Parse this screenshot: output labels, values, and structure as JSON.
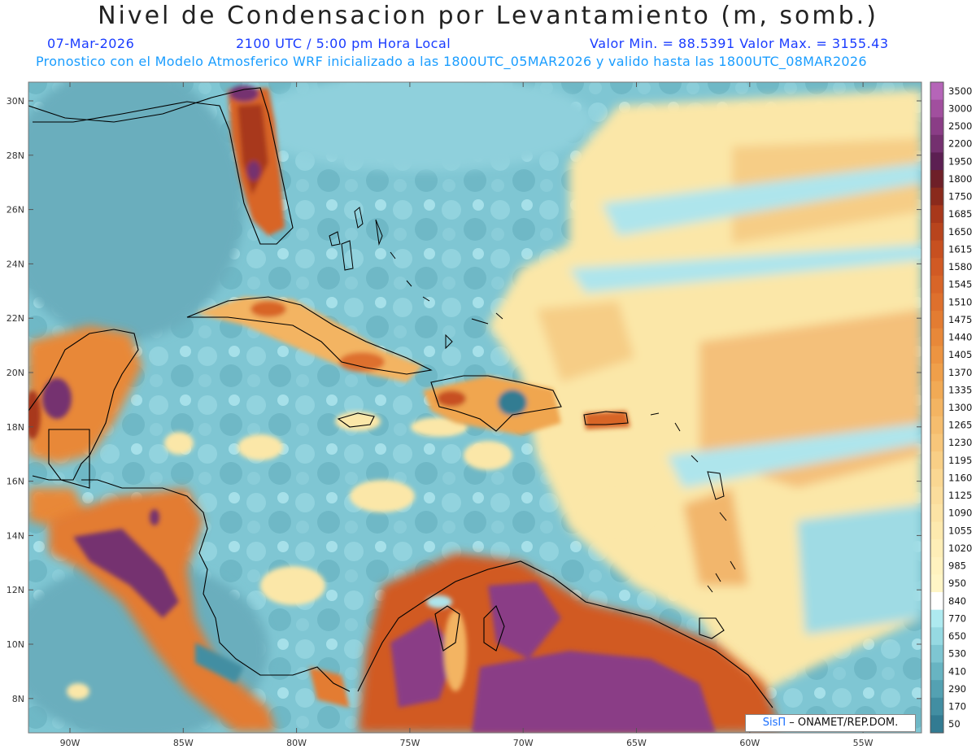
{
  "title": "Nivel de Condensacion por Levantamiento (m, somb.)",
  "subtitle": {
    "date": "07-Mar-2026",
    "time": "2100 UTC / 5:00 pm Hora Local",
    "minmax": "Valor Min. = 88.5391   Valor Max. = 3155.43"
  },
  "forecast_note": "Pronostico con el Modelo Atmosferico WRF inicializado a las 1800UTC_05MAR2026 y valido hasta las  1800UTC_08MAR2026",
  "lat_labels": [
    "30N",
    "28N",
    "26N",
    "24N",
    "22N",
    "20N",
    "18N",
    "16N",
    "14N",
    "12N",
    "10N",
    "8N"
  ],
  "lon_labels": [
    "90W",
    "85W",
    "80W",
    "75W",
    "70W",
    "65W",
    "60W",
    "55W"
  ],
  "colorbar": [
    {
      "label": "3500",
      "color": "#b565b8"
    },
    {
      "label": "3000",
      "color": "#a14f9e"
    },
    {
      "label": "2500",
      "color": "#8a3d86"
    },
    {
      "label": "2200",
      "color": "#74306f"
    },
    {
      "label": "1950",
      "color": "#5c1f52"
    },
    {
      "label": "1800",
      "color": "#6e1f28"
    },
    {
      "label": "1750",
      "color": "#8a2a1c"
    },
    {
      "label": "1685",
      "color": "#a8381b"
    },
    {
      "label": "1650",
      "color": "#b8441d"
    },
    {
      "label": "1615",
      "color": "#c75020"
    },
    {
      "label": "1580",
      "color": "#d15a24"
    },
    {
      "label": "1545",
      "color": "#d86528"
    },
    {
      "label": "1510",
      "color": "#de702d"
    },
    {
      "label": "1475",
      "color": "#e37c32"
    },
    {
      "label": "1440",
      "color": "#e88839"
    },
    {
      "label": "1405",
      "color": "#ec9441"
    },
    {
      "label": "1370",
      "color": "#ef9f4a"
    },
    {
      "label": "1335",
      "color": "#f1aa55"
    },
    {
      "label": "1300",
      "color": "#f3b462"
    },
    {
      "label": "1265",
      "color": "#f5bd6e"
    },
    {
      "label": "1230",
      "color": "#f7c67a"
    },
    {
      "label": "1195",
      "color": "#f8cf86"
    },
    {
      "label": "1160",
      "color": "#fad792"
    },
    {
      "label": "1125",
      "color": "#fbdd9c"
    },
    {
      "label": "1090",
      "color": "#fce3a5"
    },
    {
      "label": "1055",
      "color": "#fde9ae"
    },
    {
      "label": "1020",
      "color": "#feeeb7"
    },
    {
      "label": "985",
      "color": "#fff2bf"
    },
    {
      "label": "950",
      "color": "#fff5c6"
    },
    {
      "label": "840",
      "color": "#ffffff"
    },
    {
      "label": "770",
      "color": "#aeeaf0"
    },
    {
      "label": "650",
      "color": "#96d9e2"
    },
    {
      "label": "530",
      "color": "#7ec6d2"
    },
    {
      "label": "410",
      "color": "#68b4c2"
    },
    {
      "label": "290",
      "color": "#54a1b2"
    },
    {
      "label": "170",
      "color": "#428ea2"
    },
    {
      "label": "50",
      "color": "#327b92"
    }
  ],
  "credit": {
    "brand": "SisΠ",
    "text": " – ONAMET/REP.DOM."
  }
}
